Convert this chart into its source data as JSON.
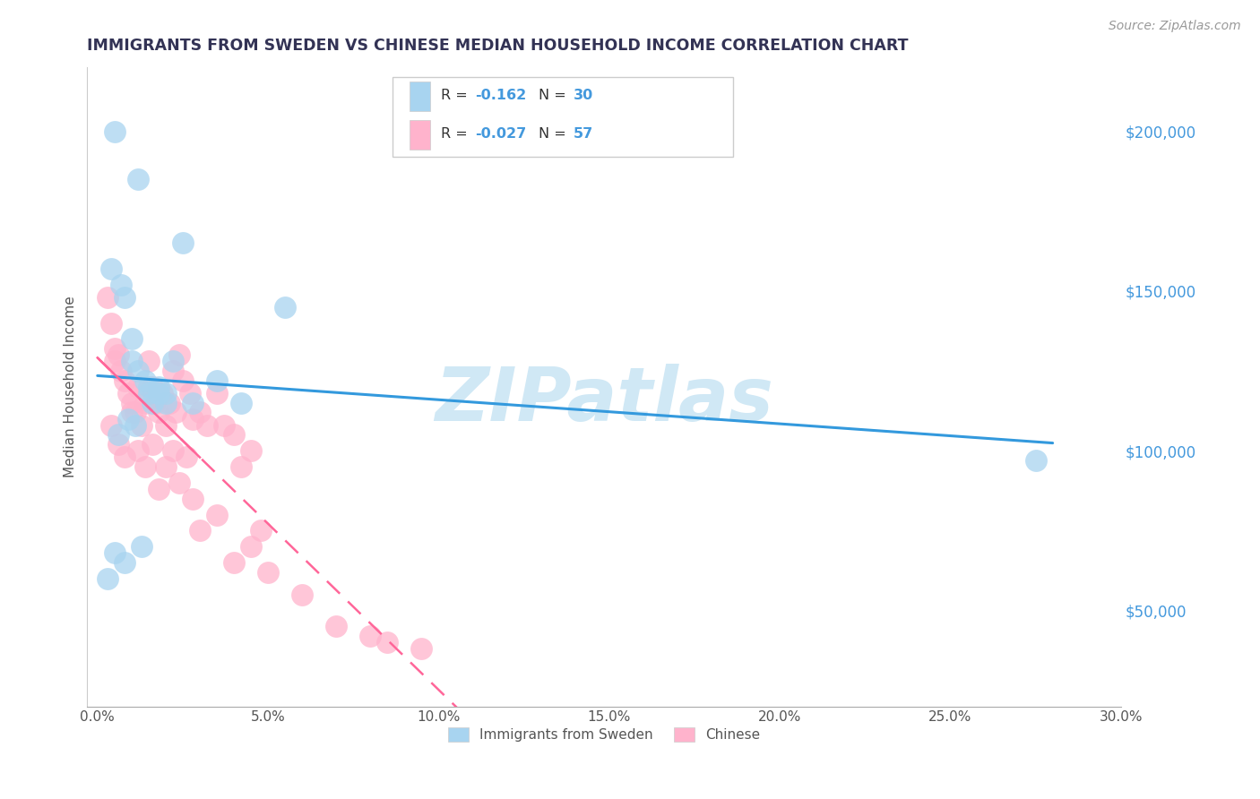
{
  "title": "IMMIGRANTS FROM SWEDEN VS CHINESE MEDIAN HOUSEHOLD INCOME CORRELATION CHART",
  "source_text": "Source: ZipAtlas.com",
  "ylabel": "Median Household Income",
  "xlim": [
    -0.3,
    30.0
  ],
  "ylim": [
    20000,
    220000
  ],
  "xticks": [
    0.0,
    5.0,
    10.0,
    15.0,
    20.0,
    25.0,
    30.0
  ],
  "ytick_vals": [
    50000,
    100000,
    150000,
    200000
  ],
  "ytick_labels": [
    "$50,000",
    "$100,000",
    "$150,000",
    "$200,000"
  ],
  "legend_labels": [
    "Immigrants from Sweden",
    "Chinese"
  ],
  "sweden_R": -0.162,
  "sweden_N": 30,
  "chinese_R": -0.027,
  "chinese_N": 57,
  "sweden_color": "#a8d4f0",
  "chinese_color": "#ffb3cc",
  "sweden_line_color": "#3399dd",
  "chinese_line_color": "#ff6699",
  "watermark": "ZIPatlas",
  "watermark_color": "#d0e8f5",
  "background_color": "#ffffff",
  "grid_color": "#e0e8f0",
  "title_color": "#333355",
  "label_color": "#4499dd",
  "sweden_points_x": [
    0.5,
    1.2,
    2.5,
    0.4,
    0.7,
    0.8,
    1.0,
    1.0,
    1.2,
    1.4,
    1.5,
    1.5,
    1.6,
    1.8,
    1.8,
    2.0,
    2.0,
    2.2,
    0.9,
    1.1,
    2.8,
    5.5,
    0.6,
    3.5,
    4.2,
    27.5,
    1.3,
    0.5,
    0.8,
    0.3
  ],
  "sweden_points_y": [
    200000,
    185000,
    165000,
    157000,
    152000,
    148000,
    135000,
    128000,
    125000,
    122000,
    120000,
    118000,
    115000,
    120000,
    118000,
    118000,
    115000,
    128000,
    110000,
    108000,
    115000,
    145000,
    105000,
    122000,
    115000,
    97000,
    70000,
    68000,
    65000,
    60000
  ],
  "chinese_points_x": [
    0.3,
    0.4,
    0.5,
    0.5,
    0.6,
    0.7,
    0.8,
    0.9,
    1.0,
    1.1,
    1.2,
    1.3,
    1.4,
    1.5,
    1.6,
    1.7,
    1.8,
    1.9,
    2.0,
    2.1,
    2.2,
    2.3,
    2.4,
    2.5,
    2.7,
    2.8,
    3.0,
    3.2,
    3.5,
    3.7,
    4.0,
    4.2,
    4.5,
    0.4,
    0.6,
    0.8,
    1.0,
    1.2,
    1.4,
    1.6,
    1.8,
    2.0,
    2.2,
    2.4,
    2.6,
    2.8,
    3.0,
    3.5,
    4.0,
    4.5,
    5.0,
    6.0,
    7.0,
    8.0,
    8.5,
    9.5,
    4.8
  ],
  "chinese_points_y": [
    148000,
    140000,
    132000,
    128000,
    130000,
    125000,
    122000,
    118000,
    115000,
    112000,
    120000,
    108000,
    115000,
    128000,
    120000,
    115000,
    112000,
    118000,
    108000,
    115000,
    125000,
    112000,
    130000,
    122000,
    118000,
    110000,
    112000,
    108000,
    118000,
    108000,
    105000,
    95000,
    100000,
    108000,
    102000,
    98000,
    112000,
    100000,
    95000,
    102000,
    88000,
    95000,
    100000,
    90000,
    98000,
    85000,
    75000,
    80000,
    65000,
    70000,
    62000,
    55000,
    45000,
    42000,
    40000,
    38000,
    75000
  ]
}
